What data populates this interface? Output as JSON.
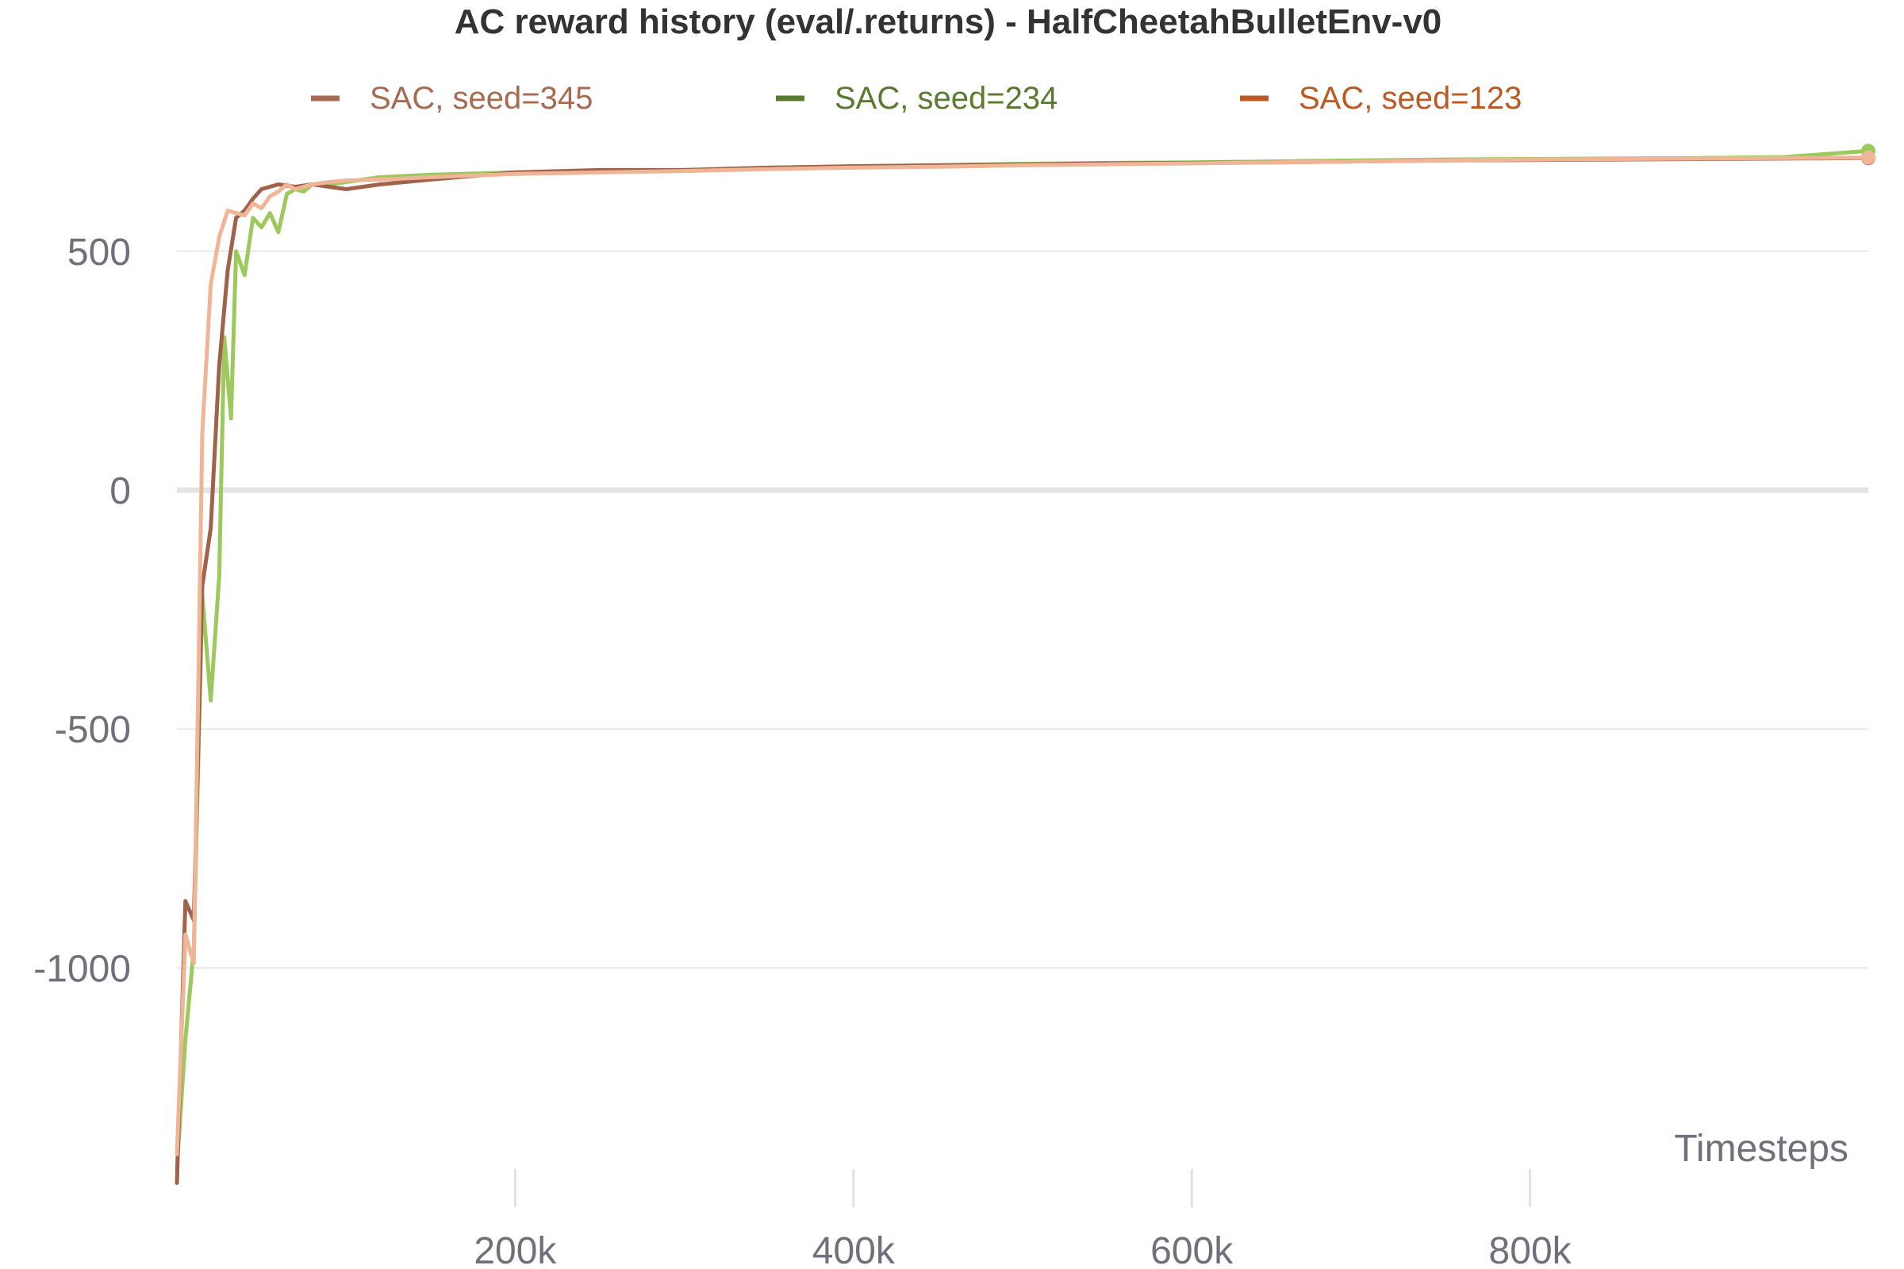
{
  "chart_data": {
    "type": "line",
    "title": "AC reward history (eval/.returns) - HalfCheetahBulletEnv-v0",
    "xlabel": "Timesteps",
    "ylabel": "",
    "xlim": [
      0,
      1000000
    ],
    "ylim": [
      -1450,
      700
    ],
    "x_ticks": [
      {
        "value": 200000,
        "label": "200k"
      },
      {
        "value": 400000,
        "label": "400k"
      },
      {
        "value": 600000,
        "label": "600k"
      },
      {
        "value": 800000,
        "label": "800k"
      }
    ],
    "y_ticks": [
      {
        "value": 500,
        "label": "500"
      },
      {
        "value": 0,
        "label": "0"
      },
      {
        "value": -500,
        "label": "-500"
      },
      {
        "value": -1000,
        "label": "-1000"
      }
    ],
    "grid": true,
    "legend_position": "top",
    "series": [
      {
        "name": "SAC, seed=345",
        "color": "#a0634a",
        "legend_color": "#a86b52",
        "x": [
          0,
          5000,
          10000,
          15000,
          20000,
          25000,
          30000,
          35000,
          40000,
          45000,
          50000,
          60000,
          70000,
          80000,
          90000,
          100000,
          120000,
          150000,
          200000,
          250000,
          300000,
          350000,
          400000,
          450000,
          500000,
          550000,
          600000,
          650000,
          700000,
          750000,
          800000,
          850000,
          900000,
          950000,
          1000000
        ],
        "y": [
          -1450,
          -860,
          -900,
          -200,
          -80,
          260,
          460,
          570,
          585,
          610,
          630,
          640,
          635,
          640,
          635,
          630,
          640,
          650,
          665,
          670,
          670,
          675,
          678,
          680,
          682,
          684,
          685,
          686,
          688,
          690,
          691,
          692,
          693,
          694,
          695
        ]
      },
      {
        "name": "SAC, seed=234",
        "color": "#9cc95c",
        "legend_color": "#5a7a2e",
        "x": [
          0,
          5000,
          10000,
          15000,
          20000,
          25000,
          28000,
          32000,
          35000,
          40000,
          45000,
          50000,
          55000,
          60000,
          65000,
          70000,
          75000,
          80000,
          90000,
          100000,
          120000,
          150000,
          200000,
          250000,
          300000,
          350000,
          400000,
          450000,
          500000,
          550000,
          600000,
          650000,
          700000,
          750000,
          800000,
          850000,
          900000,
          950000,
          1000000
        ],
        "y": [
          -1420,
          -1150,
          -960,
          -220,
          -440,
          -180,
          320,
          150,
          500,
          450,
          570,
          550,
          580,
          540,
          620,
          630,
          625,
          640,
          640,
          645,
          655,
          660,
          665,
          668,
          670,
          675,
          678,
          680,
          683,
          685,
          686,
          688,
          690,
          692,
          693,
          694,
          695,
          697,
          710
        ]
      },
      {
        "name": "SAC, seed=123",
        "color": "#f0b596",
        "legend_color": "#bd5a24",
        "x": [
          0,
          5000,
          10000,
          15000,
          20000,
          25000,
          30000,
          35000,
          40000,
          45000,
          50000,
          55000,
          60000,
          65000,
          70000,
          80000,
          90000,
          100000,
          120000,
          150000,
          200000,
          250000,
          300000,
          350000,
          400000,
          450000,
          500000,
          550000,
          600000,
          650000,
          700000,
          750000,
          800000,
          850000,
          900000,
          950000,
          1000000
        ],
        "y": [
          -1390,
          -930,
          -990,
          120,
          430,
          530,
          585,
          580,
          575,
          600,
          590,
          615,
          625,
          640,
          630,
          640,
          645,
          648,
          650,
          655,
          662,
          665,
          668,
          672,
          675,
          677,
          680,
          682,
          684,
          686,
          688,
          690,
          692,
          693,
          694,
          695,
          696
        ]
      }
    ]
  }
}
